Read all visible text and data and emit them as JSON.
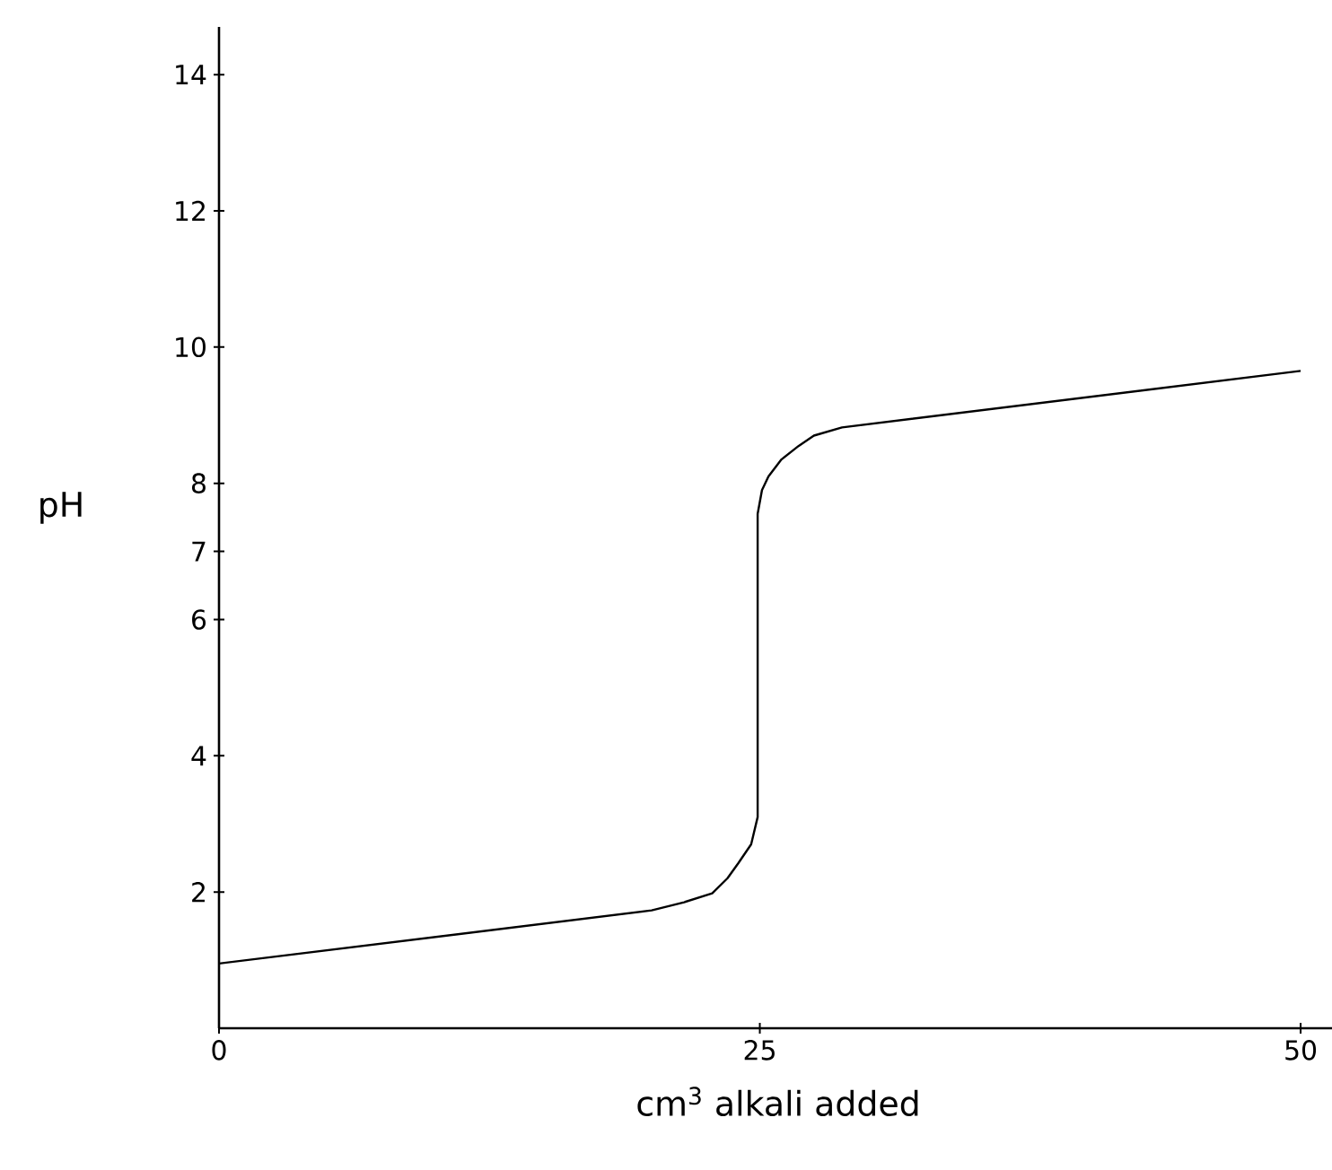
{
  "chart_data": {
    "type": "line",
    "xlabel": "cm$^{3}$ alkali added",
    "ylabel": "pH",
    "xlim": [
      0,
      51.7
    ],
    "ylim": [
      0,
      14.7
    ],
    "xticks": [
      0,
      25,
      50
    ],
    "yticks": [
      2,
      4,
      6,
      7,
      8,
      10,
      12,
      14
    ],
    "series": [
      {
        "color": "#000000",
        "x": [
          0,
          20,
          21.5,
          22.8,
          23.5,
          24,
          24.6,
          24.9,
          24.9,
          25.1,
          25.4,
          26,
          26.8,
          27.5,
          28.8,
          50
        ],
        "values": [
          0.95,
          1.73,
          1.85,
          1.98,
          2.2,
          2.42,
          2.7,
          3.1,
          7.55,
          7.9,
          8.1,
          8.35,
          8.55,
          8.7,
          8.82,
          9.65
        ]
      }
    ]
  }
}
